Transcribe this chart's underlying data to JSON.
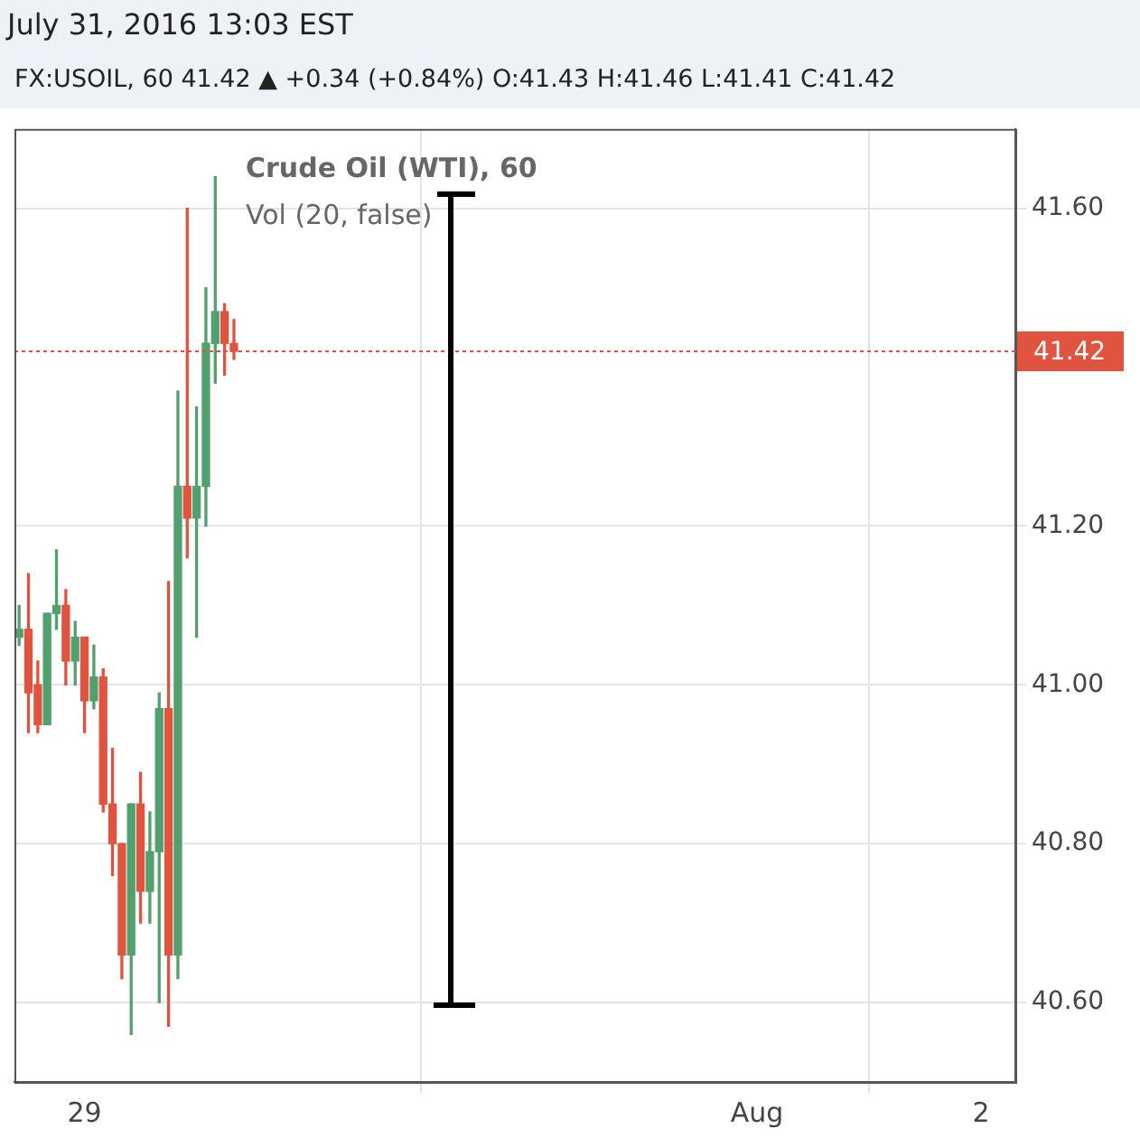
{
  "chart_data": {
    "type": "candlestick",
    "title": "Crude Oil (WTI), 60",
    "subtitle": "FX:USOIL, 60 41.42 ▲ +0.34 (+0.84%) O:41.43 H:41.46 L:41.41 C:41.42",
    "annotations": [
      "July 31, 2016 13:03 EST",
      "Vol (20, false)"
    ],
    "x": [
      "2016-07-28T17:00",
      "2016-07-28T18:00",
      "2016-07-28T19:00",
      "2016-07-28T20:00",
      "2016-07-28T21:00",
      "2016-07-28T22:00",
      "2016-07-28T23:00",
      "2016-07-29T00:00",
      "2016-07-29T01:00",
      "2016-07-29T02:00",
      "2016-07-29T03:00",
      "2016-07-29T04:00",
      "2016-07-29T05:00",
      "2016-07-29T06:00",
      "2016-07-29T07:00",
      "2016-07-29T08:00",
      "2016-07-29T09:00",
      "2016-07-29T10:00",
      "2016-07-29T11:00",
      "2016-07-29T12:00",
      "2016-07-29T13:00",
      "2016-07-29T14:00",
      "2016-07-29T15:00",
      "2016-07-29T16:00"
    ],
    "ohlc": [
      [
        41.06,
        41.1,
        41.05,
        41.07
      ],
      [
        41.07,
        41.14,
        40.94,
        40.99
      ],
      [
        41.0,
        41.03,
        40.94,
        40.95
      ],
      [
        40.95,
        41.09,
        40.95,
        41.09
      ],
      [
        41.09,
        41.17,
        41.07,
        41.1
      ],
      [
        41.1,
        41.12,
        41.0,
        41.03
      ],
      [
        41.03,
        41.08,
        41.0,
        41.06
      ],
      [
        41.06,
        41.06,
        40.94,
        40.98
      ],
      [
        40.98,
        41.05,
        40.97,
        41.01
      ],
      [
        41.01,
        41.02,
        40.84,
        40.85
      ],
      [
        40.85,
        40.92,
        40.76,
        40.8
      ],
      [
        40.8,
        40.8,
        40.63,
        40.66
      ],
      [
        40.66,
        40.85,
        40.56,
        40.85
      ],
      [
        40.85,
        40.89,
        40.7,
        40.74
      ],
      [
        40.74,
        40.84,
        40.7,
        40.79
      ],
      [
        40.79,
        40.99,
        40.6,
        40.97
      ],
      [
        40.97,
        41.13,
        40.57,
        40.66
      ],
      [
        40.66,
        41.37,
        40.63,
        41.25
      ],
      [
        41.25,
        41.6,
        41.16,
        41.21
      ],
      [
        41.21,
        41.35,
        41.06,
        41.25
      ],
      [
        41.25,
        41.5,
        41.2,
        41.43
      ],
      [
        41.43,
        41.64,
        41.38,
        41.47
      ],
      [
        41.47,
        41.48,
        41.39,
        41.43
      ],
      [
        41.43,
        41.46,
        41.41,
        41.42
      ]
    ],
    "colors": [
      "#53a06f",
      "#e0533f",
      "#e0533f",
      "#53a06f",
      "#53a06f",
      "#e0533f",
      "#53a06f",
      "#e0533f",
      "#53a06f",
      "#e0533f",
      "#e0533f",
      "#e0533f",
      "#53a06f",
      "#e0533f",
      "#53a06f",
      "#53a06f",
      "#e0533f",
      "#53a06f",
      "#e0533f",
      "#53a06f",
      "#53a06f",
      "#53a06f",
      "#e0533f",
      "#e0533f"
    ],
    "xlim": [
      "2016-07-28T16:30",
      "2016-08-02T03:40"
    ],
    "xticks": [
      {
        "value": "2016-07-29",
        "label": "29"
      },
      {
        "value": "2016-08-01",
        "label": "Aug"
      },
      {
        "value": "2016-08-02",
        "label": "2"
      }
    ],
    "ylim": [
      40.5,
      41.7
    ],
    "yticks": [
      {
        "value": 40.6,
        "label": "40.60"
      },
      {
        "value": 40.8,
        "label": "40.80"
      },
      {
        "value": 41.0,
        "label": "41.00"
      },
      {
        "value": 41.2,
        "label": "41.20"
      },
      {
        "value": 41.6,
        "label": "41.60"
      }
    ],
    "grid": true,
    "ref_lines": [
      {
        "axis": "y",
        "value": 41.42,
        "label": "41.42",
        "color": "#e0533f",
        "line_style": "dotted"
      }
    ]
  }
}
